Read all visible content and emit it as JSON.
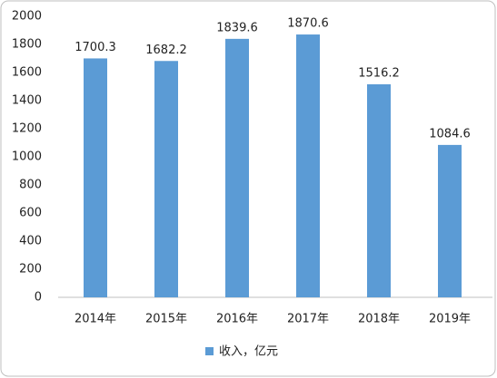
{
  "chart_data": {
    "type": "bar",
    "categories": [
      "2014年",
      "2015年",
      "2016年",
      "2017年",
      "2018年",
      "2019年"
    ],
    "series": [
      {
        "name": "收入，亿元",
        "color": "#5b9bd5",
        "values": [
          1700.3,
          1682.2,
          1839.6,
          1870.6,
          1516.2,
          1084.6
        ]
      }
    ],
    "ylim": [
      0,
      2000
    ],
    "yticks": [
      0,
      200,
      400,
      600,
      800,
      1000,
      1200,
      1400,
      1600,
      1800,
      2000
    ],
    "grid": false,
    "data_labels": true,
    "legend": "bottom"
  }
}
